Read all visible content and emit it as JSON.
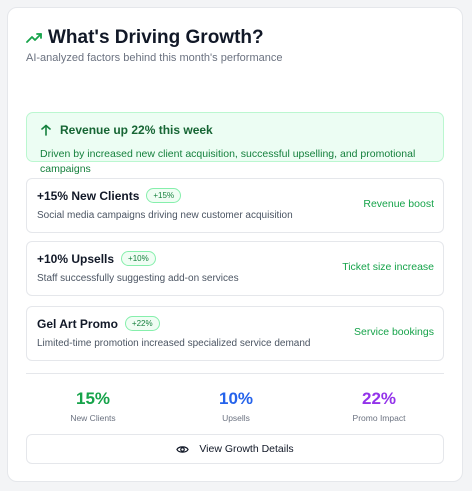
{
  "header": {
    "title": "What's Driving Growth?",
    "subtitle": "AI-analyzed factors behind this month's performance",
    "icon": "trending-up-icon"
  },
  "highlight": {
    "icon": "arrow-up-icon",
    "headline": "Revenue up 22% this week",
    "description": "Driven by increased new client acquisition, successful upselling, and promotional campaigns"
  },
  "factors": [
    {
      "title": "+15% New Clients",
      "badge": "+15%",
      "description": "Social media campaigns driving new customer acquisition",
      "impact": "Revenue boost"
    },
    {
      "title": "+10% Upsells",
      "badge": "+10%",
      "description": "Staff successfully suggesting add-on services",
      "impact": "Ticket size increase"
    },
    {
      "title": "Gel Art Promo",
      "badge": "+22%",
      "description": "Limited-time promotion increased specialized service demand",
      "impact": "Service bookings"
    }
  ],
  "stats": [
    {
      "value": "15%",
      "label": "New Clients",
      "color": "#16a34a"
    },
    {
      "value": "10%",
      "label": "Upsells",
      "color": "#2563eb"
    },
    {
      "value": "22%",
      "label": "Promo Impact",
      "color": "#9333ea"
    }
  ],
  "action": {
    "label": "View Growth Details",
    "icon": "eye-icon"
  },
  "colors": {
    "accent_green": "#16a34a",
    "highlight_bg": "#ecfdf3",
    "highlight_border": "#bbf7d0"
  }
}
